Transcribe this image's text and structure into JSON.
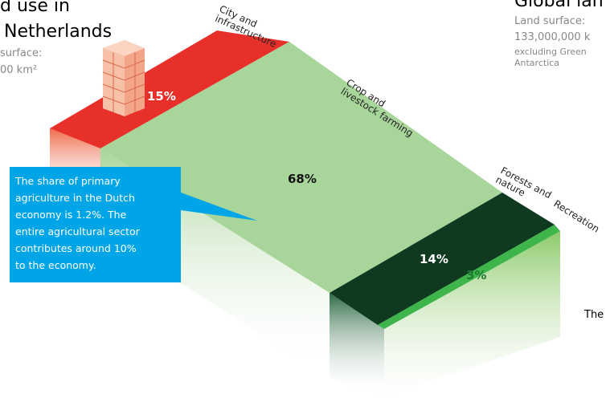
{
  "left_header": {
    "title_line1": "d use in",
    "title_line2": "Netherlands",
    "subtitle_line1": "surface:",
    "subtitle_line2": "00 km²"
  },
  "right_header": {
    "title": "Global lan",
    "subtitle_line1": "Land surface:",
    "subtitle_line2": "133,000,000 k",
    "subtitle_line3": "excluding Green",
    "subtitle_line4": "Antarctica"
  },
  "segments": [
    {
      "label_line1": "City and",
      "label_line2": "infrastructure",
      "share": "15%"
    },
    {
      "label_line1": "Crop and",
      "label_line2": "livestock farming",
      "share": "68%"
    },
    {
      "label_line1": "Forests and",
      "label_line2": "nature",
      "share": "14%"
    },
    {
      "label_line1": "Recreation",
      "share": "3%"
    }
  ],
  "callout": {
    "lines": [
      "The share of primary",
      "agriculture in the Dutch",
      "economy is 1.2%. The",
      "entire agricultural sector",
      "contributes around 10%",
      "to the economy."
    ]
  },
  "right_note": "The"
}
